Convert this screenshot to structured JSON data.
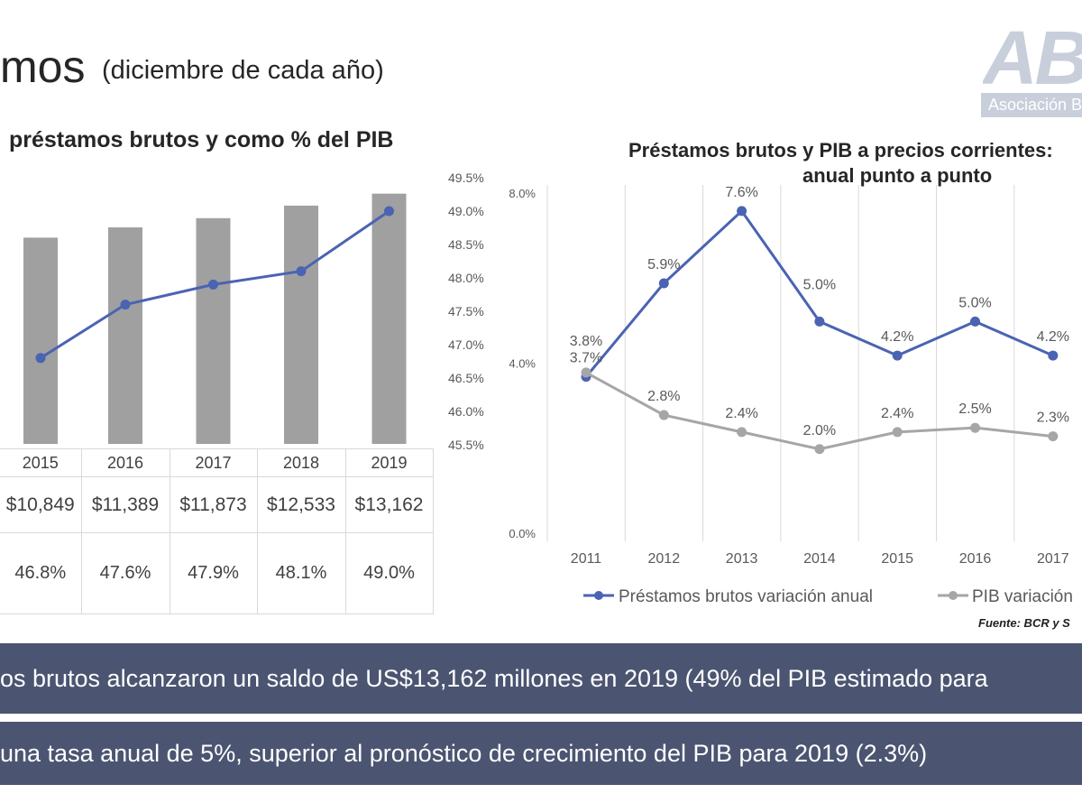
{
  "header": {
    "title": "mos",
    "subtitle": "(diciembre de cada año)"
  },
  "logo": {
    "letters": "ABA",
    "tagline": "Asociación B"
  },
  "colors": {
    "band": "#4b5571",
    "logo": "#c8cfdb"
  },
  "chart_data": [
    {
      "type": "bar",
      "title": "préstamos brutos y como % del PIB",
      "categories": [
        "2015",
        "2016",
        "2017",
        "2018",
        "2019"
      ],
      "series": [
        {
          "type": "bar",
          "values": [
            10849,
            11389,
            11873,
            12533,
            13162
          ],
          "color": "#a0a0a0"
        },
        {
          "type": "line",
          "axis": "right",
          "values": [
            46.8,
            47.6,
            47.9,
            48.1,
            49.0
          ],
          "color": "#4a63b3"
        }
      ],
      "ylim": [
        0,
        14000
      ],
      "y2lim": [
        45.5,
        49.5
      ],
      "y2_ticks": [
        "49.5%",
        "49.0%",
        "48.5%",
        "48.0%",
        "47.5%",
        "47.0%",
        "46.5%",
        "46.0%",
        "45.5%"
      ],
      "table": [
        [
          "$10,849",
          "$11,389",
          "$11,873",
          "$12,533",
          "$13,162"
        ],
        [
          "46.8%",
          "47.6%",
          "47.9%",
          "48.1%",
          "49.0%"
        ]
      ],
      "grid": false
    },
    {
      "type": "line",
      "title": [
        "Préstamos brutos y PIB a precios corrientes:",
        "anual punto a punto"
      ],
      "categories": [
        "2011",
        "2012",
        "2013",
        "2014",
        "2015",
        "2016",
        "2017"
      ],
      "series": [
        {
          "name": "Préstamos brutos variación anual",
          "values": [
            3.7,
            5.9,
            7.6,
            5.0,
            4.2,
            5.0,
            4.2
          ],
          "labels": [
            "3.7%",
            "5.9%",
            "7.6%",
            "5.0%",
            "4.2%",
            "5.0%",
            "4.2%"
          ],
          "color": "#4a63b3"
        },
        {
          "name": "PIB variación",
          "values": [
            3.8,
            2.8,
            2.4,
            2.0,
            2.4,
            2.5,
            2.3
          ],
          "labels": [
            "3.8%",
            "2.8%",
            "2.4%",
            "2.0%",
            "2.4%",
            "2.5%",
            "2.3%"
          ],
          "color": "#a6a6a6"
        }
      ],
      "ylim": [
        0,
        8
      ],
      "y_ticks": [
        "8.0%",
        "4.0%",
        "0.0%"
      ],
      "grid": "vertical",
      "legend": "bottom",
      "source": "Fuente: BCR y S"
    }
  ],
  "bands": [
    "os brutos alcanzaron un saldo de US$13,162 millones en 2019 (49% del PIB estimado para",
    "una tasa anual de 5%,  superior al pronóstico de crecimiento del PIB para 2019 (2.3%)"
  ]
}
